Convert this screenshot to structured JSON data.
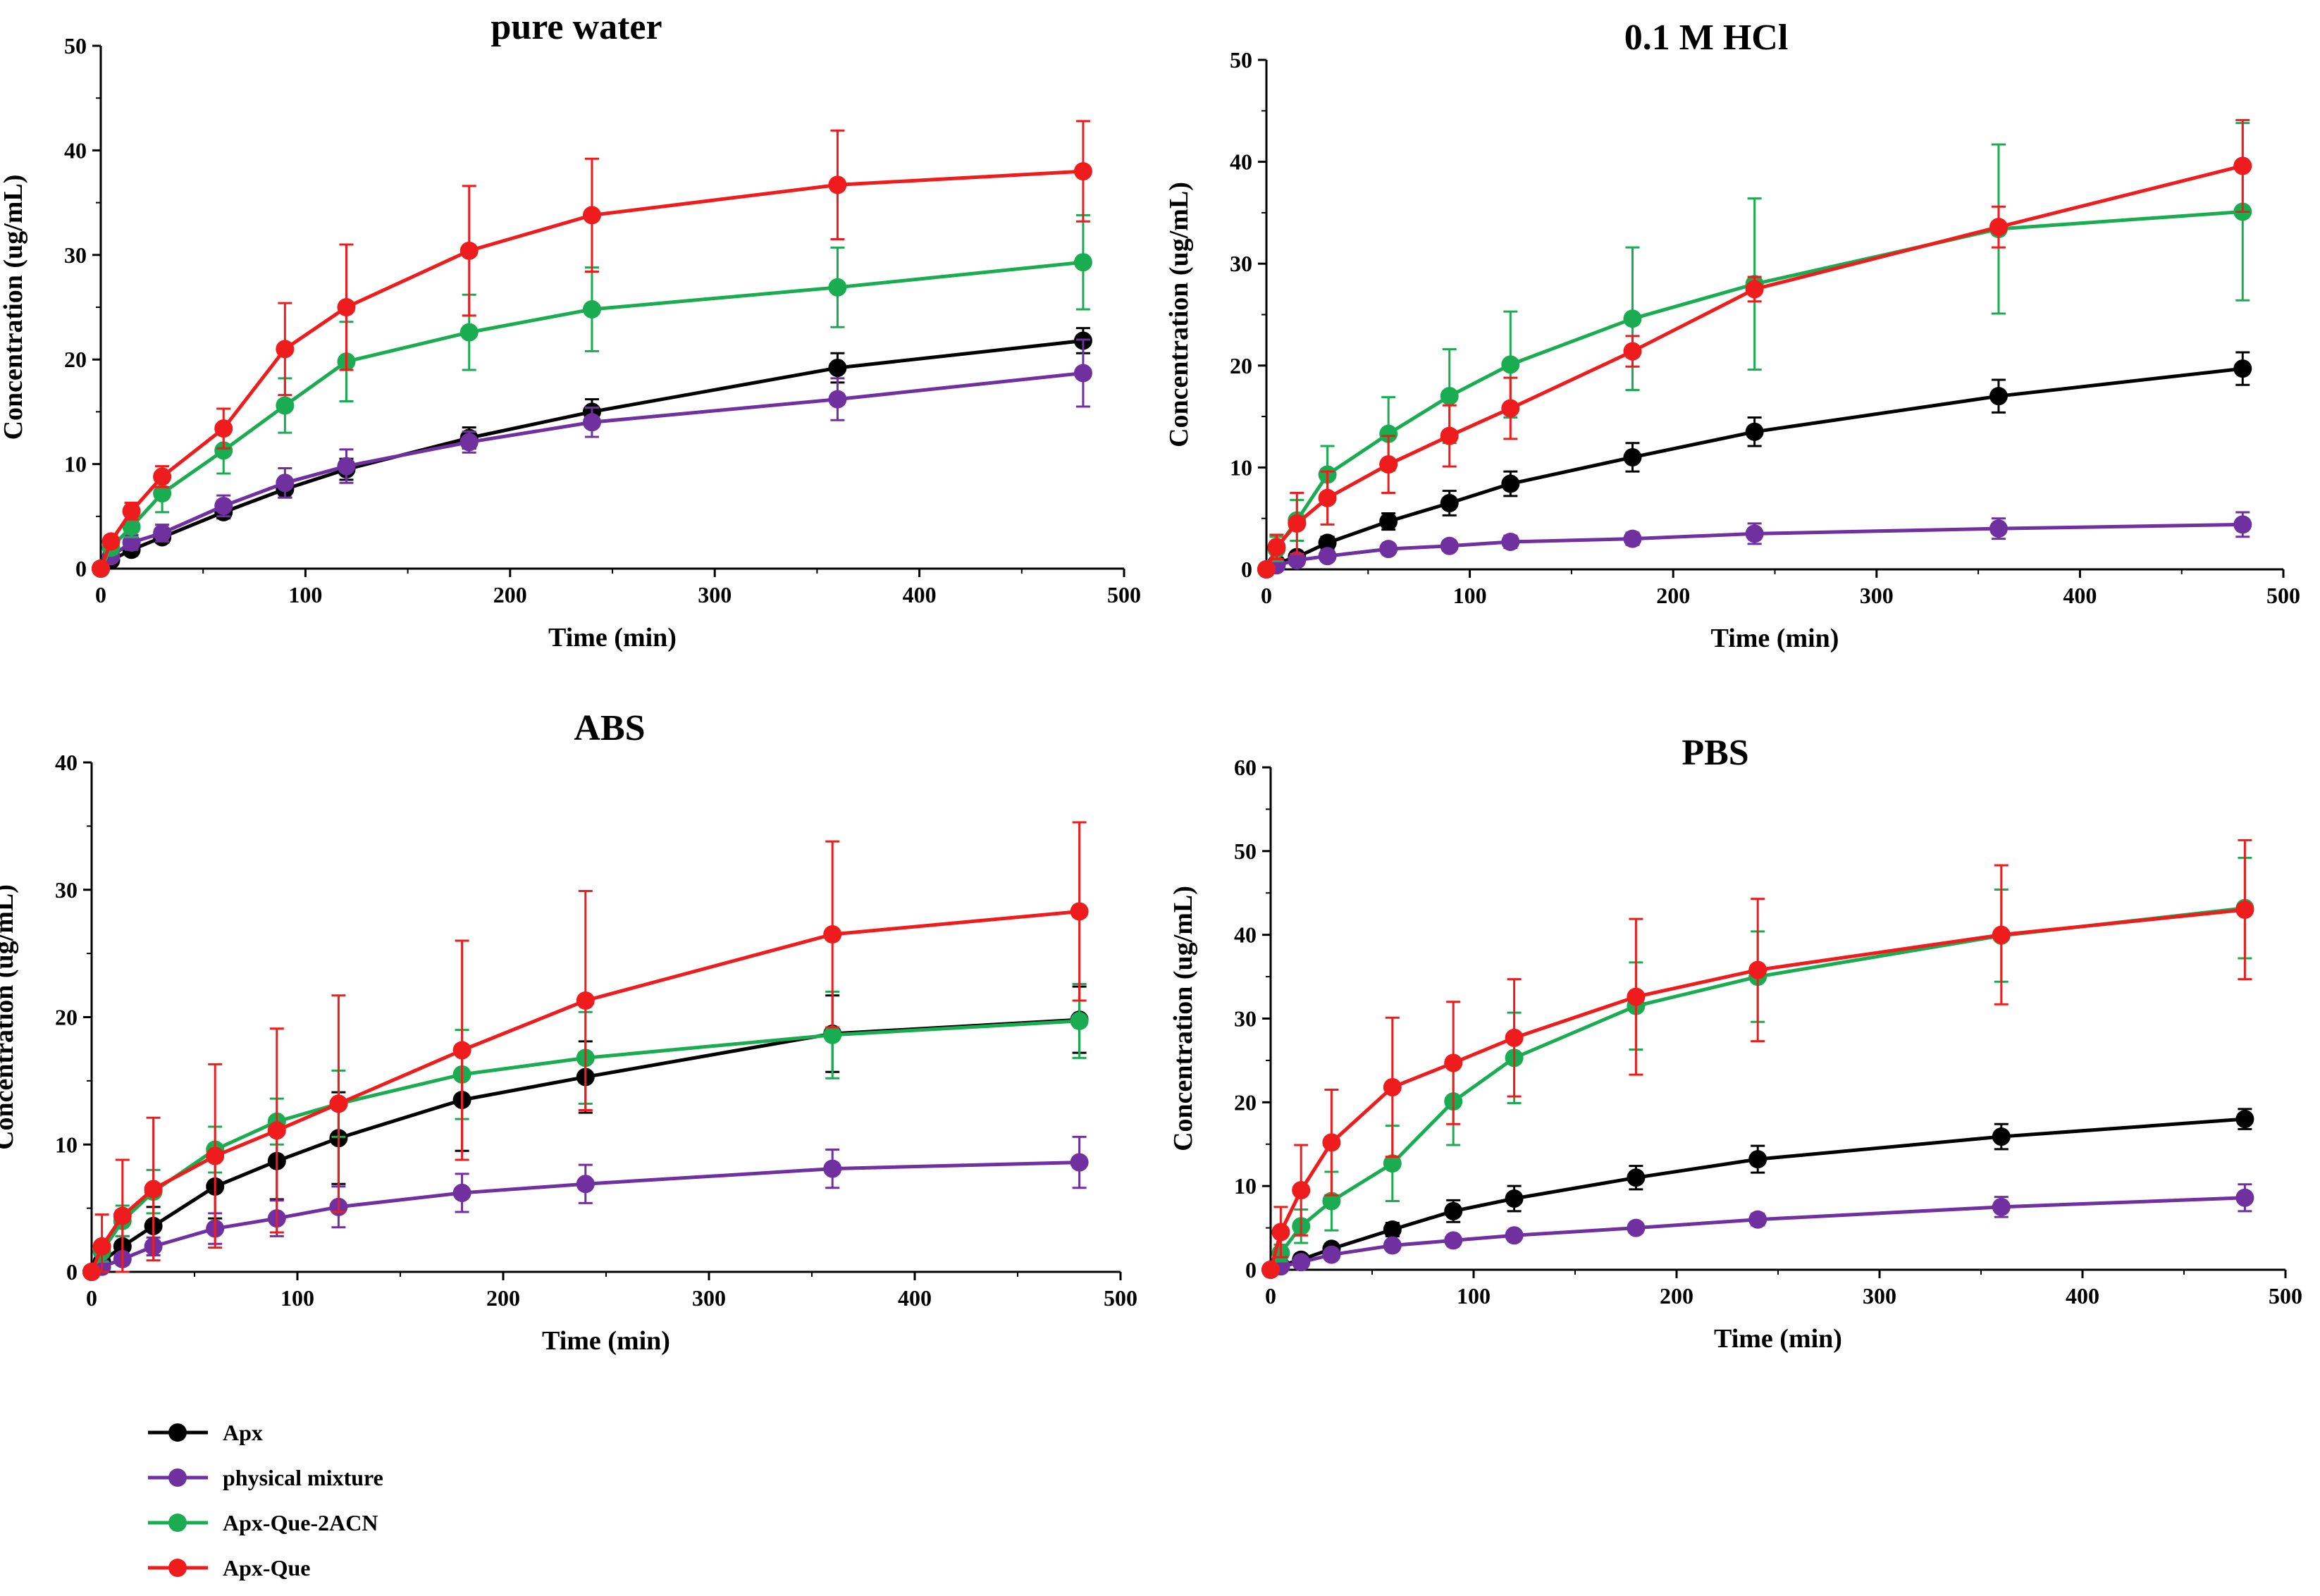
{
  "x_ticks": [
    "0",
    "100",
    "200",
    "300",
    "400",
    "500"
  ],
  "legend": [
    {
      "name": "Apx",
      "color": "#000000"
    },
    {
      "name": "physical mixture",
      "color": "#7030a0"
    },
    {
      "name": "Apx-Que-2ACN",
      "color": "#1aac50"
    },
    {
      "name": "Apx-Que",
      "color": "#ee1c1c"
    }
  ],
  "chart_data": [
    {
      "type": "line",
      "title": "pure water",
      "xlabel": "Time (min)",
      "ylabel": "Concentration (ug/mL)",
      "xlim": [
        0,
        500
      ],
      "ylim": [
        0,
        50
      ],
      "yticks": [
        "0",
        "10",
        "20",
        "30",
        "40",
        "50"
      ],
      "x": [
        0,
        5,
        15,
        30,
        60,
        90,
        120,
        180,
        240,
        360,
        480
      ],
      "series": [
        {
          "name": "Apx",
          "color": "#000000",
          "values": [
            0,
            0.8,
            1.8,
            3.0,
            5.4,
            7.6,
            9.5,
            12.5,
            15.0,
            19.2,
            21.8
          ],
          "errors": [
            0,
            0.3,
            0.4,
            0.5,
            0.6,
            0.8,
            1.0,
            1.0,
            1.2,
            1.4,
            1.2
          ]
        },
        {
          "name": "physical mixture",
          "color": "#7030a0",
          "values": [
            0,
            1.2,
            2.5,
            3.4,
            6.0,
            8.2,
            9.8,
            12.1,
            14.0,
            16.2,
            18.7
          ],
          "errors": [
            0,
            0.5,
            0.7,
            0.8,
            1.0,
            1.4,
            1.6,
            1.0,
            1.4,
            2.0,
            3.2
          ]
        },
        {
          "name": "Apx-Que-2ACN",
          "color": "#1aac50",
          "values": [
            0,
            2.0,
            4.0,
            7.2,
            11.3,
            15.6,
            19.8,
            22.6,
            24.8,
            26.9,
            29.3
          ],
          "errors": [
            0,
            0.6,
            1.0,
            1.8,
            2.2,
            2.6,
            3.8,
            3.6,
            4.0,
            3.8,
            4.5
          ]
        },
        {
          "name": "Apx-Que",
          "color": "#ee1c1c",
          "values": [
            0,
            2.6,
            5.5,
            8.8,
            13.4,
            21.0,
            25.0,
            30.4,
            33.8,
            36.7,
            38.0
          ],
          "errors": [
            0,
            0.5,
            0.8,
            1.0,
            1.9,
            4.4,
            6.0,
            6.2,
            5.4,
            5.2,
            4.8
          ]
        }
      ]
    },
    {
      "type": "line",
      "title": "0.1 M HCl",
      "xlabel": "Time (min)",
      "ylabel": "Concentration (ug/mL)",
      "xlim": [
        0,
        500
      ],
      "ylim": [
        0,
        50
      ],
      "yticks": [
        "0",
        "10",
        "20",
        "30",
        "40",
        "50"
      ],
      "x": [
        0,
        5,
        15,
        30,
        60,
        90,
        120,
        180,
        240,
        360,
        480
      ],
      "series": [
        {
          "name": "Apx",
          "color": "#000000",
          "values": [
            0,
            0.6,
            1.2,
            2.6,
            4.7,
            6.5,
            8.4,
            11.0,
            13.5,
            17.0,
            19.7
          ],
          "errors": [
            0,
            0.2,
            0.4,
            0.6,
            0.8,
            1.2,
            1.2,
            1.4,
            1.4,
            1.6,
            1.6
          ]
        },
        {
          "name": "physical mixture",
          "color": "#7030a0",
          "values": [
            0,
            0.4,
            0.9,
            1.3,
            2.0,
            2.3,
            2.7,
            3.0,
            3.5,
            4.0,
            4.4
          ],
          "errors": [
            0,
            0.2,
            0.3,
            0.4,
            0.5,
            0.5,
            0.6,
            0.6,
            1.0,
            1.0,
            1.2
          ]
        },
        {
          "name": "Apx-Que-2ACN",
          "color": "#1aac50",
          "values": [
            0,
            2.0,
            4.8,
            9.3,
            13.3,
            17.0,
            20.1,
            24.6,
            28.0,
            33.4,
            35.1
          ],
          "errors": [
            0,
            1.2,
            2.0,
            2.8,
            3.6,
            4.6,
            5.2,
            7.0,
            8.4,
            8.3,
            8.7
          ]
        },
        {
          "name": "Apx-Que",
          "color": "#ee1c1c",
          "values": [
            0,
            2.2,
            4.5,
            7.0,
            10.3,
            13.1,
            15.8,
            21.4,
            27.5,
            33.6,
            39.6
          ],
          "errors": [
            0,
            1.2,
            3.0,
            2.6,
            2.8,
            3.0,
            3.0,
            1.5,
            1.2,
            2.0,
            4.5
          ]
        }
      ]
    },
    {
      "type": "line",
      "title": "ABS",
      "xlabel": "Time (min)",
      "ylabel": "Concentration (ug/mL)",
      "xlim": [
        0,
        500
      ],
      "ylim": [
        0,
        40
      ],
      "yticks": [
        "0",
        "10",
        "20",
        "30",
        "40"
      ],
      "x": [
        0,
        5,
        15,
        30,
        60,
        90,
        120,
        180,
        240,
        360,
        480
      ],
      "series": [
        {
          "name": "Apx",
          "color": "#000000",
          "values": [
            0,
            0.8,
            2.0,
            3.6,
            6.7,
            8.7,
            10.5,
            13.5,
            15.3,
            18.7,
            19.8
          ],
          "errors": [
            0,
            0.4,
            0.8,
            1.5,
            2.5,
            3.0,
            3.6,
            4.0,
            2.8,
            3.0,
            2.6
          ]
        },
        {
          "name": "physical mixture",
          "color": "#7030a0",
          "values": [
            0,
            0.4,
            1.0,
            2.0,
            3.4,
            4.2,
            5.1,
            6.2,
            6.9,
            8.1,
            8.6
          ],
          "errors": [
            0,
            0.2,
            0.4,
            0.7,
            1.2,
            1.4,
            1.6,
            1.5,
            1.5,
            1.5,
            2.0
          ]
        },
        {
          "name": "Apx-Que-2ACN",
          "color": "#1aac50",
          "values": [
            0,
            1.6,
            4.0,
            6.3,
            9.6,
            11.8,
            13.2,
            15.5,
            16.8,
            18.6,
            19.7
          ],
          "errors": [
            0,
            0.8,
            1.2,
            1.7,
            1.8,
            1.8,
            2.6,
            3.5,
            3.6,
            3.4,
            2.9
          ]
        },
        {
          "name": "Apx-Que",
          "color": "#ee1c1c",
          "values": [
            0,
            2.0,
            4.4,
            6.5,
            9.1,
            11.1,
            13.2,
            17.4,
            21.3,
            26.5,
            28.3
          ],
          "errors": [
            0,
            2.5,
            4.4,
            5.6,
            7.2,
            8.0,
            8.5,
            8.6,
            8.6,
            7.3,
            7.0
          ]
        }
      ]
    },
    {
      "type": "line",
      "title": "PBS",
      "xlabel": "Time (min)",
      "ylabel": "Concentration (ug/mL)",
      "xlim": [
        0,
        500
      ],
      "ylim": [
        0,
        60
      ],
      "yticks": [
        "0",
        "10",
        "20",
        "30",
        "40",
        "50",
        "60"
      ],
      "x": [
        0,
        5,
        15,
        30,
        60,
        90,
        120,
        180,
        240,
        360,
        480
      ],
      "series": [
        {
          "name": "Apx",
          "color": "#000000",
          "values": [
            0,
            0.5,
            1.2,
            2.5,
            4.8,
            7.0,
            8.5,
            11.0,
            13.2,
            15.9,
            18.0
          ],
          "errors": [
            0,
            0.3,
            0.4,
            0.6,
            0.8,
            1.3,
            1.5,
            1.4,
            1.6,
            1.5,
            1.2
          ]
        },
        {
          "name": "physical mixture",
          "color": "#7030a0",
          "values": [
            0,
            0.4,
            0.9,
            1.8,
            2.9,
            3.5,
            4.1,
            5.0,
            6.0,
            7.5,
            8.6
          ],
          "errors": [
            0,
            0.2,
            0.4,
            0.5,
            0.5,
            0.5,
            0.5,
            0.6,
            0.7,
            1.2,
            1.6
          ]
        },
        {
          "name": "Apx-Que-2ACN",
          "color": "#1aac50",
          "values": [
            0,
            2.0,
            5.2,
            8.2,
            12.7,
            20.1,
            25.3,
            31.5,
            35.0,
            39.9,
            43.2
          ],
          "errors": [
            0,
            1.0,
            2.0,
            3.5,
            4.5,
            5.2,
            5.4,
            5.2,
            5.4,
            5.5,
            6.0
          ]
        },
        {
          "name": "Apx-Que",
          "color": "#ee1c1c",
          "values": [
            0,
            4.5,
            9.5,
            15.2,
            21.8,
            24.7,
            27.7,
            32.6,
            35.8,
            40.0,
            43.0
          ],
          "errors": [
            0,
            3.0,
            5.4,
            6.3,
            8.3,
            7.3,
            7.0,
            9.3,
            8.5,
            8.3,
            8.3
          ]
        }
      ]
    }
  ]
}
